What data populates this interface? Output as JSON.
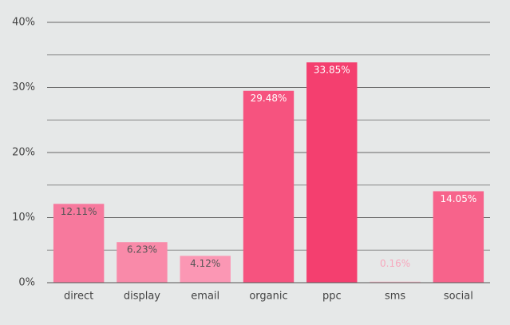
{
  "chart_data": {
    "type": "bar",
    "categories": [
      "direct",
      "display",
      "email",
      "organic",
      "ppc",
      "sms",
      "social"
    ],
    "values": [
      12.11,
      6.23,
      4.12,
      29.48,
      33.85,
      0.16,
      14.05
    ],
    "value_labels": [
      "12.11%",
      "6.23%",
      "4.12%",
      "29.48%",
      "33.85%",
      "0.16%",
      "14.05%"
    ],
    "colors": [
      "#f7799d",
      "#f98aa9",
      "#fb97b4",
      "#f6537f",
      "#f43f6f",
      "#f9b8c9",
      "#f7638b"
    ],
    "ylim": [
      0,
      40
    ],
    "yticks": [
      {
        "value": 0,
        "label": "0%"
      },
      {
        "value": 10,
        "label": "10%"
      },
      {
        "value": 20,
        "label": "20%"
      },
      {
        "value": 30,
        "label": "30%"
      },
      {
        "value": 40,
        "label": "40%"
      }
    ],
    "minor_yticks": [
      5,
      15,
      25,
      35
    ],
    "grid": true
  }
}
